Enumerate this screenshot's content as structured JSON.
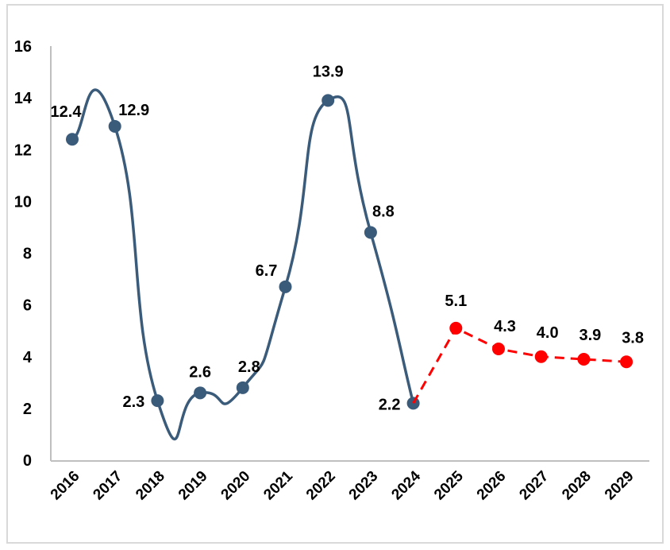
{
  "chart_data": {
    "type": "line",
    "title": "",
    "xlabel": "",
    "ylabel": "",
    "ylim": [
      0,
      16
    ],
    "yticks": [
      0,
      2,
      4,
      6,
      8,
      10,
      12,
      14,
      16
    ],
    "grid": false,
    "categories": [
      "2016",
      "2017",
      "2018",
      "2019",
      "2020",
      "2021",
      "2022",
      "2023",
      "2024",
      "2025",
      "2026",
      "2027",
      "2028",
      "2029"
    ],
    "series": [
      {
        "style": "solid-smooth",
        "color": "#3b5b7b",
        "x": [
          "2016",
          "2017",
          "2018",
          "2019",
          "2020",
          "2021",
          "2022",
          "2023",
          "2024"
        ],
        "values": [
          12.4,
          12.9,
          2.3,
          2.6,
          2.8,
          6.7,
          13.9,
          8.8,
          2.2
        ],
        "labels": [
          "12.4",
          "12.9",
          "2.3",
          "2.6",
          "2.8",
          "6.7",
          "13.9",
          "8.8",
          "2.2"
        ]
      },
      {
        "style": "dashed",
        "color": "#ff0000",
        "x": [
          "2024",
          "2025",
          "2026",
          "2027",
          "2028",
          "2029"
        ],
        "values": [
          2.2,
          5.1,
          4.3,
          4.0,
          3.9,
          3.8
        ],
        "labels": [
          "",
          "5.1",
          "4.3",
          "4.0",
          "3.9",
          "3.8"
        ]
      }
    ]
  }
}
